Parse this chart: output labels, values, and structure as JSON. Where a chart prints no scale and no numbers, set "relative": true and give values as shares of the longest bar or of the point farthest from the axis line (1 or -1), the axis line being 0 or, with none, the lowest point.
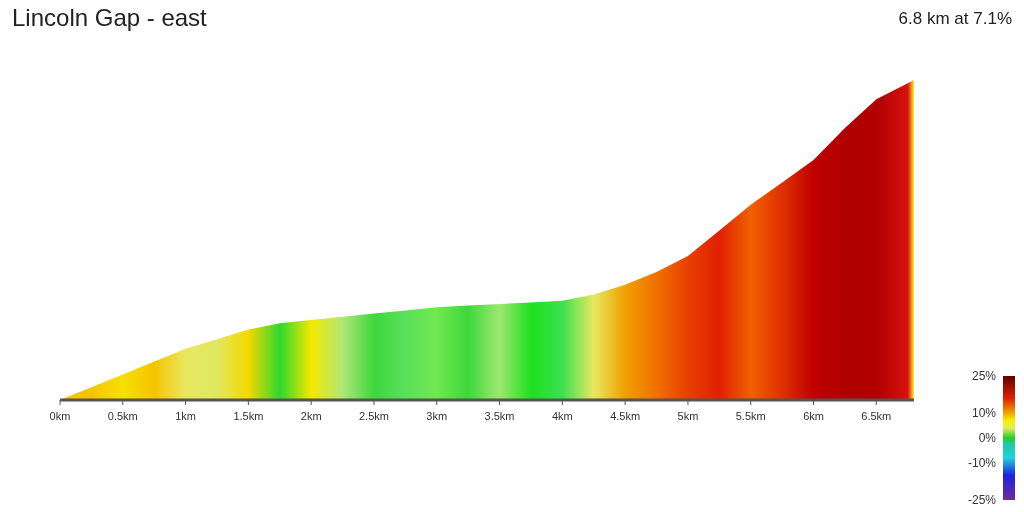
{
  "chart_data": {
    "type": "area",
    "title": "Lincoln Gap - east",
    "subtitle": "6.8 km at 7.1%",
    "relative": true,
    "x": [
      0,
      0.25,
      0.5,
      0.75,
      1,
      1.25,
      1.5,
      1.75,
      2,
      2.25,
      2.5,
      2.75,
      3,
      3.25,
      3.5,
      3.75,
      4,
      4.25,
      4.5,
      4.75,
      5,
      5.25,
      5.5,
      5.75,
      6,
      6.25,
      6.5,
      6.75,
      6.8
    ],
    "values": [
      0,
      0.04,
      0.08,
      0.12,
      0.16,
      0.19,
      0.22,
      0.24,
      0.25,
      0.26,
      0.27,
      0.28,
      0.29,
      0.295,
      0.3,
      0.305,
      0.31,
      0.33,
      0.36,
      0.4,
      0.45,
      0.53,
      0.61,
      0.68,
      0.75,
      0.85,
      0.94,
      0.99,
      1
    ],
    "colors": [
      "#f5c400",
      "#f5c400",
      "#f5e000",
      "#f5c400",
      "#e8e860",
      "#e0e860",
      "#f5d800",
      "#2ed82e",
      "#f5e800",
      "#b0e878",
      "#3ed63e",
      "#5ae05a",
      "#70e850",
      "#3cd83c",
      "#a0e870",
      "#1ee01e",
      "#3ce050",
      "#e8e860",
      "#f0a000",
      "#f07000",
      "#e84000",
      "#e02000",
      "#f06000",
      "#e03000",
      "#c00000",
      "#b00000",
      "#b00000",
      "#d81010",
      "#f8f020"
    ],
    "xlim": [
      0,
      6.8
    ],
    "xticks": [
      {
        "value": 0,
        "label": "0km"
      },
      {
        "value": 0.5,
        "label": "0.5km"
      },
      {
        "value": 1,
        "label": "1km"
      },
      {
        "value": 1.5,
        "label": "1.5km"
      },
      {
        "value": 2,
        "label": "2km"
      },
      {
        "value": 2.5,
        "label": "2.5km"
      },
      {
        "value": 3,
        "label": "3km"
      },
      {
        "value": 3.5,
        "label": "3.5km"
      },
      {
        "value": 4,
        "label": "4km"
      },
      {
        "value": 4.5,
        "label": "4.5km"
      },
      {
        "value": 5,
        "label": "5km"
      },
      {
        "value": 5.5,
        "label": "5.5km"
      },
      {
        "value": 6,
        "label": "6km"
      },
      {
        "value": 6.5,
        "label": "6.5km"
      }
    ],
    "clim": [
      -25,
      25
    ],
    "cticks": [
      {
        "value": 25,
        "label": "25%"
      },
      {
        "value": 10,
        "label": "10%"
      },
      {
        "value": 0,
        "label": "0%"
      },
      {
        "value": -10,
        "label": "-10%"
      },
      {
        "value": -25,
        "label": "-25%"
      }
    ]
  }
}
